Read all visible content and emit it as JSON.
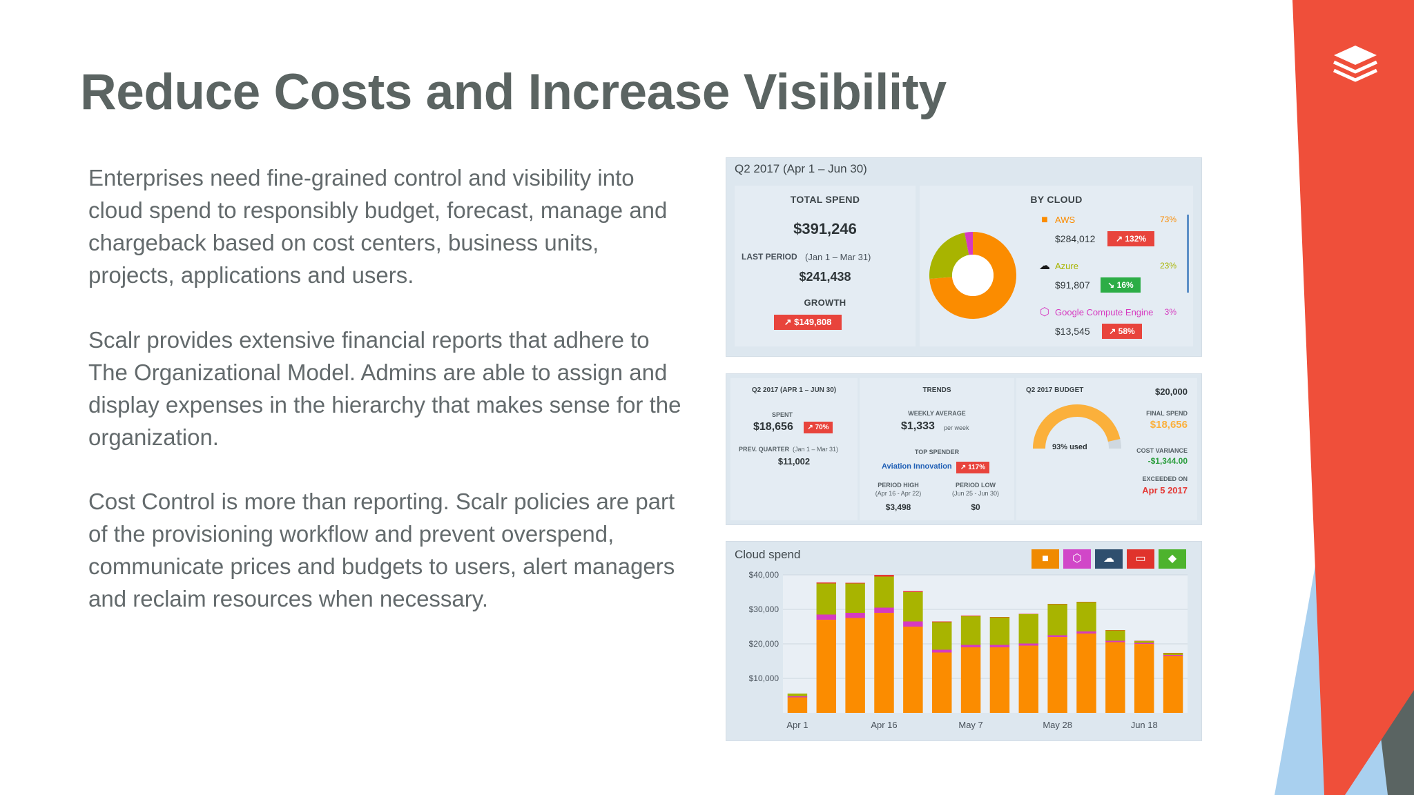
{
  "slide": {
    "title": "Reduce Costs and Increase Visibility",
    "paragraphs": [
      "Enterprises need fine-grained control and visibility into cloud spend to responsibly budget, forecast, manage and chargeback based on cost centers, business units, projects, applications and users.",
      "Scalr provides extensive financial reports that adhere to The Organizational Model. Admins are able to assign and display expenses in the hierarchy that makes sense for the organization.",
      "Cost Control is more than reporting. Scalr policies are part of the provisioning workflow and prevent overspend, communicate prices and budgets to users, alert managers and reclaim resources when necessary."
    ],
    "colors": {
      "title": "#5b6462",
      "accent_red": "#ef4f3a",
      "accent_gray": "#5a6462",
      "accent_blue": "#a9d0ef"
    },
    "logo_icon": "stacked-layers-icon"
  },
  "summary": {
    "period": "Q2 2017 (Apr 1 – Jun 30)",
    "total_spend_label": "TOTAL SPEND",
    "total_spend": "$391,246",
    "last_period_label": "LAST PERIOD",
    "last_period_range": "(Jan 1 – Mar 31)",
    "last_period_value": "$241,438",
    "growth_label": "GROWTH",
    "growth_value": "↗ $149,808",
    "by_cloud_label": "BY CLOUD",
    "clouds": [
      {
        "name": "AWS",
        "amount": "$284,012",
        "change": "↗ 132%",
        "share": "73%",
        "share_value": 73,
        "color": "#fb8c00",
        "trend": "up",
        "icon": "aws-box-icon"
      },
      {
        "name": "Azure",
        "amount": "$91,807",
        "change": "↘ 16%",
        "share": "23%",
        "share_value": 23,
        "color": "#a8b400",
        "trend": "down",
        "icon": "azure-cloud-icon"
      },
      {
        "name": "Google Compute Engine",
        "amount": "$13,545",
        "change": "↗ 58%",
        "share": "3%",
        "share_value": 3,
        "color": "#d63ac0",
        "trend": "up",
        "icon": "google-cloud-icon"
      }
    ]
  },
  "budget": {
    "period_label": "Q2 2017 (APR 1 – JUN 30)",
    "spent_label": "SPENT",
    "spent": "$18,656",
    "spent_change": "↗ 70%",
    "prev_quarter_label": "PREV. QUARTER",
    "prev_quarter_range": "(Jan 1 – Mar 31)",
    "prev_quarter_value": "$11,002",
    "trends_label": "TRENDS",
    "weekly_average_label": "WEEKLY AVERAGE",
    "weekly_average": "$1,333",
    "per_week": "per week",
    "top_spender_label": "TOP SPENDER",
    "top_spender": "Aviation Innovation",
    "top_spender_change": "↗ 117%",
    "period_high_label": "PERIOD HIGH",
    "period_high_range": "(Apr 16 - Apr 22)",
    "period_high": "$3,498",
    "period_low_label": "PERIOD LOW",
    "period_low_range": "(Jun 25 - Jun 30)",
    "period_low": "$0",
    "budget_label": "Q2 2017 BUDGET",
    "budget_value": "$20,000",
    "used_text": "93% used",
    "used_fraction": 0.93,
    "final_spend_label": "FINAL SPEND",
    "final_spend": "$18,656",
    "cost_variance_label": "COST VARIANCE",
    "cost_variance": "-$1,344.00",
    "exceeded_on_label": "EXCEEDED ON",
    "exceeded_on": "Apr 5 2017"
  },
  "chart_legend": [
    {
      "icon": "aws-box-icon",
      "color": "#f08a00"
    },
    {
      "icon": "google-cloud-icon",
      "color": "#d147c8"
    },
    {
      "icon": "azure-cloud-icon",
      "color": "#2f4f6e"
    },
    {
      "icon": "private-cloud-icon",
      "color": "#e0332c"
    },
    {
      "icon": "other-cloud-icon",
      "color": "#4db32d"
    }
  ],
  "chart_data": {
    "type": "bar",
    "title": "Cloud spend",
    "stacked": true,
    "x_tick_labels": [
      "Apr 1",
      "Apr 16",
      "May 7",
      "May 28",
      "Jun 18"
    ],
    "y_tick_labels": [
      "$40,000",
      "$30,000",
      "$20,000",
      "$10,000"
    ],
    "ylim": [
      0,
      40000
    ],
    "grid": true,
    "legend": "top-right",
    "series": [
      {
        "color": "#fb8c00",
        "values": [
          4500,
          27000,
          27500,
          29000,
          25000,
          17500,
          19000,
          19000,
          19500,
          22000,
          23000,
          20500,
          20000,
          16500
        ]
      },
      {
        "color": "#d63ac0",
        "values": [
          300,
          1500,
          1500,
          1500,
          1500,
          800,
          700,
          700,
          600,
          500,
          600,
          400,
          300,
          300
        ]
      },
      {
        "color": "#a8b400",
        "values": [
          800,
          9000,
          8500,
          9000,
          8500,
          8000,
          8300,
          8000,
          8500,
          9000,
          8500,
          3000,
          500,
          500
        ]
      },
      {
        "color": "#e53935",
        "values": [
          0,
          300,
          200,
          500,
          300,
          200,
          200,
          100,
          100,
          100,
          100,
          100,
          100,
          100
        ]
      }
    ]
  }
}
